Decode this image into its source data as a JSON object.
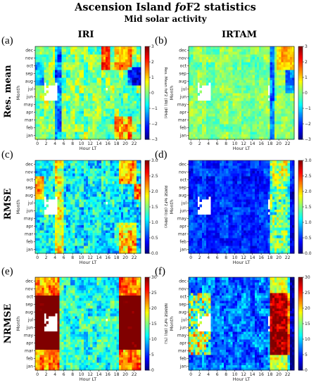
{
  "figure": {
    "title": "Ascension Island foF2 statistics",
    "title_pre": "Ascension Island ",
    "title_italic": "fo",
    "title_post": "F2 statistics",
    "subtitle": "Mid solar activity",
    "col_titles": [
      "IRI",
      "IRTAM"
    ],
    "row_titles": [
      "Res. mean",
      "RMSE",
      "NRMSE"
    ]
  },
  "chart_data": [
    {
      "panel": "(a)",
      "type": "heatmap",
      "xlabel": "Hour LT",
      "ylabel": "Month",
      "x_ticks": [
        "0",
        "2",
        "4",
        "6",
        "8",
        "10",
        "12",
        "14",
        "16",
        "18",
        "20",
        "22"
      ],
      "y_ticks": [
        "jan",
        "feb",
        "mar",
        "apr",
        "may",
        "jun",
        "jul",
        "aug",
        "sep",
        "oct",
        "nov",
        "dec"
      ],
      "colorbar_label": "Res. Mean foF2 (IRI) (MHz)",
      "vmin": -3,
      "vmax": 3,
      "cb_ticks": [
        "-3",
        "-2",
        "-1",
        "0",
        "1",
        "2",
        "3"
      ],
      "cb_ticks_display": [
        "−3",
        "−2",
        "−1",
        "0",
        "1",
        "2",
        "3"
      ],
      "model": "iri_mean"
    },
    {
      "panel": "(b)",
      "type": "heatmap",
      "xlabel": "Hour LT",
      "ylabel": "Month",
      "x_ticks": [
        "0",
        "2",
        "4",
        "6",
        "8",
        "10",
        "12",
        "14",
        "16",
        "18",
        "20",
        "22"
      ],
      "y_ticks": [
        "jan",
        "feb",
        "mar",
        "apr",
        "may",
        "jun",
        "jul",
        "aug",
        "sep",
        "oct",
        "nov",
        "dec"
      ],
      "colorbar_label": "Res. Mean foF2 IRTAM (MHz)",
      "vmin": -3,
      "vmax": 3,
      "cb_ticks": [
        "-3",
        "-2",
        "-1",
        "0",
        "1",
        "2",
        "3"
      ],
      "cb_ticks_display": [
        "−3",
        "−2",
        "−1",
        "0",
        "1",
        "2",
        "3"
      ],
      "model": "irtam_mean"
    },
    {
      "panel": "(c)",
      "type": "heatmap",
      "xlabel": "Hour LT",
      "ylabel": "Month",
      "x_ticks": [
        "0",
        "2",
        "4",
        "6",
        "8",
        "10",
        "12",
        "14",
        "16",
        "18",
        "20",
        "22"
      ],
      "y_ticks": [
        "jan",
        "feb",
        "mar",
        "apr",
        "may",
        "jun",
        "jul",
        "aug",
        "sep",
        "oct",
        "nov",
        "dec"
      ],
      "colorbar_label": "RMSE foF2 (IRI) (MHz)",
      "vmin": 0,
      "vmax": 3,
      "cb_ticks": [
        "0.0",
        "0.5",
        "1.0",
        "1.5",
        "2.0",
        "2.5",
        "3.0"
      ],
      "cb_ticks_display": [
        "0.0",
        "0.5",
        "1.0",
        "1.5",
        "2.0",
        "2.5",
        "3.0"
      ],
      "model": "iri_rmse"
    },
    {
      "panel": "(d)",
      "type": "heatmap",
      "xlabel": "Hour LT",
      "ylabel": "Month",
      "x_ticks": [
        "0",
        "2",
        "4",
        "6",
        "8",
        "10",
        "12",
        "14",
        "16",
        "18",
        "20",
        "22"
      ],
      "y_ticks": [
        "jan",
        "feb",
        "mar",
        "apr",
        "may",
        "jun",
        "jul",
        "aug",
        "sep",
        "oct",
        "nov",
        "dec"
      ],
      "colorbar_label": "RMSE foF2 IRTAM (MHz)",
      "vmin": 0,
      "vmax": 3,
      "cb_ticks": [
        "0.0",
        "0.5",
        "1.0",
        "1.5",
        "2.0",
        "2.5",
        "3.0"
      ],
      "cb_ticks_display": [
        "0.0",
        "0.5",
        "1.0",
        "1.5",
        "2.0",
        "2.5",
        "3.0"
      ],
      "model": "irtam_rmse"
    },
    {
      "panel": "(e)",
      "type": "heatmap",
      "xlabel": "Hour LT",
      "ylabel": "Month",
      "x_ticks": [
        "0",
        "2",
        "4",
        "6",
        "8",
        "10",
        "12",
        "14",
        "16",
        "18",
        "20",
        "22"
      ],
      "y_ticks": [
        "jan",
        "feb",
        "mar",
        "apr",
        "may",
        "jun",
        "jul",
        "aug",
        "sep",
        "oct",
        "nov",
        "dec"
      ],
      "colorbar_label": "NRMSE foF2 (IRI) (%)",
      "vmin": 0,
      "vmax": 30,
      "cb_ticks": [
        "0",
        "5",
        "10",
        "15",
        "20",
        "25",
        "30"
      ],
      "cb_ticks_display": [
        "0",
        "5",
        "10",
        "15",
        "20",
        "25",
        "30"
      ],
      "model": "iri_nrmse"
    },
    {
      "panel": "(f)",
      "type": "heatmap",
      "xlabel": "Hour LT",
      "ylabel": "Month",
      "x_ticks": [
        "0",
        "2",
        "4",
        "6",
        "8",
        "10",
        "12",
        "14",
        "16",
        "18",
        "20",
        "22"
      ],
      "y_ticks": [
        "jan",
        "feb",
        "mar",
        "apr",
        "may",
        "jun",
        "jul",
        "aug",
        "sep",
        "oct",
        "nov",
        "dec"
      ],
      "colorbar_label": "NRMSE foF2 IRTAM (%)",
      "vmin": 0,
      "vmax": 30,
      "cb_ticks": [
        "0",
        "5",
        "10",
        "15",
        "20",
        "25",
        "30"
      ],
      "cb_ticks_display": [
        "0",
        "5",
        "10",
        "15",
        "20",
        "25",
        "30"
      ],
      "model": "irtam_nrmse"
    }
  ]
}
